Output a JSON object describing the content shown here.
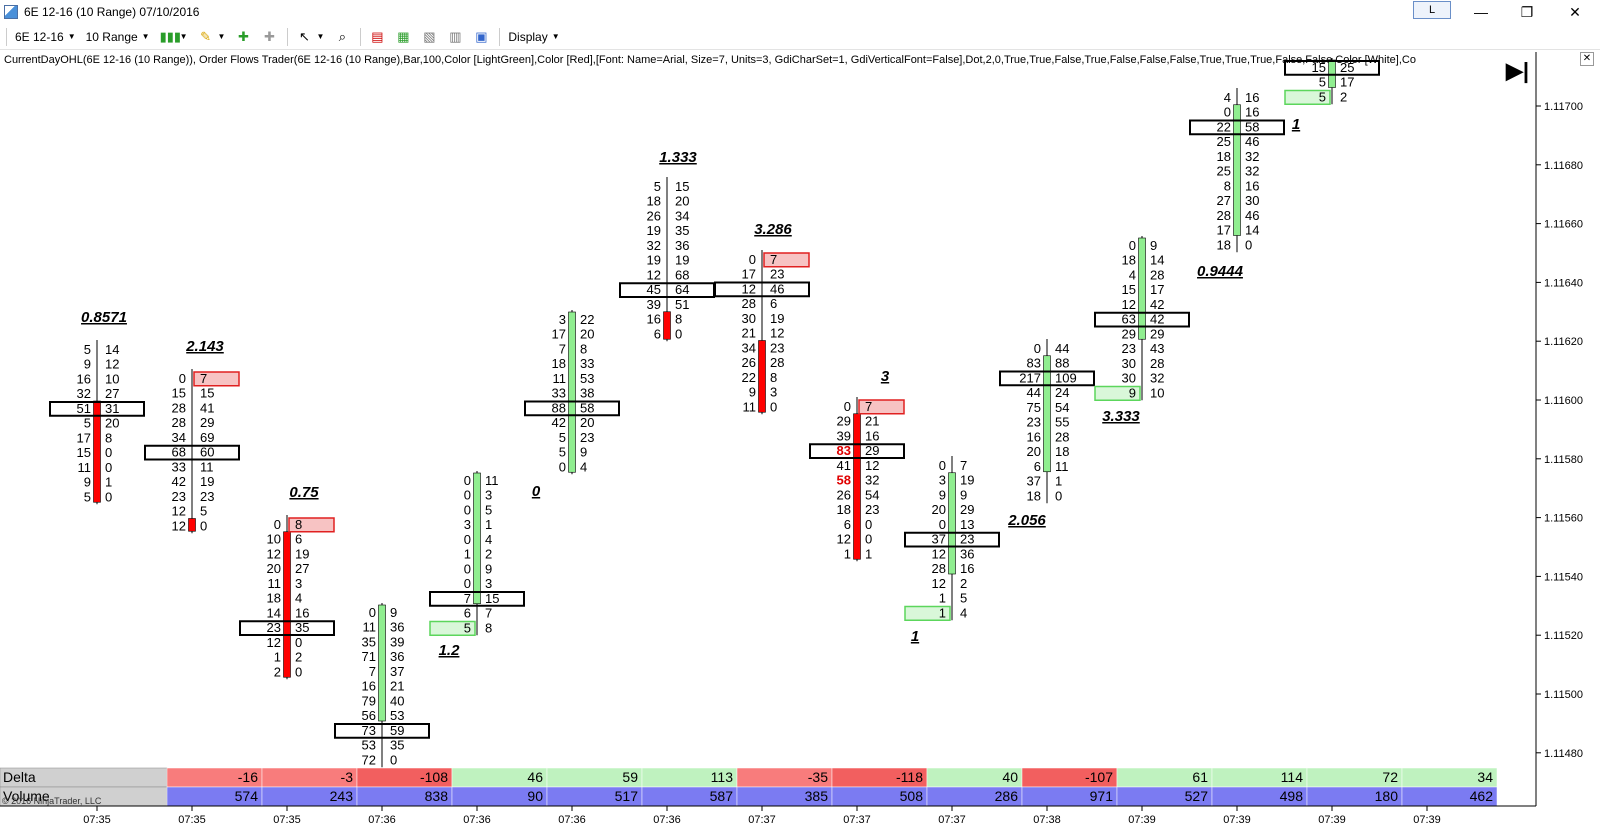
{
  "window": {
    "title": "6E 12-16 (10 Range)  07/10/2016",
    "buttons": {
      "layout": "L",
      "minimize": "—",
      "maximize": "❐",
      "close": "✕"
    }
  },
  "toolbar": {
    "instrument": "6E 12-16",
    "interval": "10 Range",
    "display_label": "Display",
    "icons": [
      "bar-style-icon",
      "draw-tool-icon",
      "pin-icon",
      "magnet-icon",
      "cursor-icon",
      "zoom-icon",
      "properties-icon",
      "strategy-icon",
      "template-icon",
      "data-box-icon",
      "chart-trader-icon"
    ]
  },
  "indicator_line": "CurrentDayOHL(6E 12-16 (10 Range)),  Order Flows Trader(6E 12-16 (10 Range),Bar,100,Color [LightGreen],Color [Red],[Font: Name=Arial, Size=7, Units=3, GdiCharSet=1, GdiVerticalFont=False],Dot,2,0,True,True,False,True,False,False,False,True,True,True,False,False,Color [White],Co",
  "copyright": "© 2016 NinjaTrader, LLC",
  "colors": {
    "up": "#90EE90",
    "down": "#FF0000",
    "delta_pos": "#BFF2BF",
    "delta_neg": "#F87C7C",
    "volume": "#7B7BF2",
    "neg_strong": "#F25F5F"
  },
  "chart_data": {
    "type": "footprint",
    "instrument": "6E 12-16",
    "y_axis": {
      "ticks": [
        "1.11700",
        "1.11680",
        "1.11660",
        "1.11640",
        "1.11620",
        "1.11600",
        "1.11580",
        "1.11560",
        "1.11540",
        "1.11520",
        "1.11500",
        "1.11480"
      ]
    },
    "x_axis": {
      "ticks": [
        "07:35",
        "07:35",
        "07:35",
        "07:36",
        "07:36",
        "07:36",
        "07:36",
        "07:37",
        "07:37",
        "07:37",
        "07:38",
        "07:39",
        "07:39",
        "07:39",
        "07:39"
      ]
    },
    "bars": [
      {
        "dir": "down",
        "ratio": "0.8571",
        "bid": [
          "5",
          "9",
          "16",
          "32",
          "51",
          "5",
          "17",
          "15",
          "11",
          "9",
          "5"
        ],
        "ask": [
          "14",
          "12",
          "10",
          "27",
          "31",
          "20",
          "8",
          "0",
          "0",
          "1",
          "0"
        ]
      },
      {
        "dir": "down",
        "ratio": "2.143",
        "bid": [
          "0",
          "15",
          "28",
          "28",
          "34",
          "68",
          "33",
          "42",
          "23",
          "12",
          "12"
        ],
        "ask": [
          "7",
          "15",
          "41",
          "29",
          "69",
          "60",
          "11",
          "19",
          "23",
          "5",
          "0"
        ]
      },
      {
        "dir": "down",
        "ratio": "0.75",
        "bid": [
          "0",
          "10",
          "12",
          "20",
          "11",
          "18",
          "14",
          "23",
          "12",
          "1",
          "2"
        ],
        "ask": [
          "8",
          "6",
          "19",
          "27",
          "3",
          "4",
          "16",
          "35",
          "0",
          "2",
          "0"
        ]
      },
      {
        "dir": "up",
        "ratio": "1.2",
        "bid": [
          "0",
          "11",
          "35",
          "71",
          "7",
          "16",
          "79",
          "56",
          "73",
          "53",
          "72"
        ],
        "ask": [
          "9",
          "36",
          "39",
          "36",
          "37",
          "21",
          "40",
          "53",
          "59",
          "35",
          "0"
        ]
      },
      {
        "dir": "up",
        "ratio": "0",
        "bid": [
          "0",
          "0",
          "0",
          "3",
          "0",
          "1",
          "0",
          "0",
          "7",
          "6",
          "5"
        ],
        "ask": [
          "11",
          "3",
          "5",
          "1",
          "4",
          "2",
          "9",
          "3",
          "15",
          "7",
          "8"
        ]
      },
      {
        "dir": "up",
        "ratio": "",
        "bid": [
          "3",
          "17",
          "7",
          "18",
          "11",
          "33",
          "88",
          "42",
          "5",
          "5",
          "0"
        ],
        "ask": [
          "22",
          "20",
          "8",
          "33",
          "53",
          "38",
          "58",
          "20",
          "23",
          "9",
          "4"
        ]
      },
      {
        "dir": "down",
        "ratio": "1.333",
        "bid": [
          "5",
          "18",
          "26",
          "19",
          "32",
          "19",
          "12",
          "45",
          "39",
          "16",
          "6"
        ],
        "ask": [
          "15",
          "20",
          "34",
          "35",
          "36",
          "19",
          "68",
          "64",
          "51",
          "8",
          "0"
        ]
      },
      {
        "dir": "down",
        "ratio": "3.286",
        "bid": [
          "0",
          "17",
          "12",
          "28",
          "30",
          "21",
          "34",
          "26",
          "22",
          "9",
          "11"
        ],
        "ask": [
          "7",
          "23",
          "46",
          "6",
          "19",
          "12",
          "23",
          "28",
          "8",
          "3",
          "0"
        ]
      },
      {
        "dir": "down",
        "ratio": "3",
        "bid": [
          "0",
          "29",
          "39",
          "83",
          "41",
          "58",
          "26",
          "18",
          "6",
          "12",
          "1"
        ],
        "ask": [
          "7",
          "21",
          "16",
          "29",
          "12",
          "32",
          "54",
          "23",
          "0",
          "0",
          "1"
        ]
      },
      {
        "dir": "up",
        "ratio": "1",
        "bid": [
          "0",
          "3",
          "9",
          "20",
          "0",
          "37",
          "12",
          "28",
          "12",
          "1",
          "1"
        ],
        "ask": [
          "7",
          "19",
          "9",
          "29",
          "13",
          "23",
          "36",
          "16",
          "2",
          "5",
          "4"
        ]
      },
      {
        "dir": "up",
        "ratio": "2.056",
        "bid": [
          "0",
          "83",
          "217",
          "44",
          "75",
          "23",
          "16",
          "20",
          "6",
          "37",
          "18"
        ],
        "ask": [
          "44",
          "88",
          "109",
          "24",
          "54",
          "55",
          "28",
          "18",
          "11",
          "1",
          "0"
        ]
      },
      {
        "dir": "up",
        "ratio": "3.333",
        "bid": [
          "0",
          "18",
          "4",
          "15",
          "12",
          "63",
          "29",
          "23",
          "30",
          "30",
          "9"
        ],
        "ask": [
          "9",
          "14",
          "28",
          "17",
          "42",
          "42",
          "29",
          "43",
          "28",
          "32",
          "10"
        ]
      },
      {
        "dir": "up",
        "ratio": "0.9444",
        "bid": [
          "4",
          "0",
          "22",
          "25",
          "18",
          "25",
          "8",
          "27",
          "28",
          "17",
          "18"
        ],
        "ask": [
          "16",
          "16",
          "58",
          "46",
          "32",
          "32",
          "16",
          "30",
          "46",
          "14",
          "0"
        ]
      },
      {
        "dir": "up",
        "ratio": "1",
        "bid": [
          "15",
          "5",
          "5"
        ],
        "ask": [
          "25",
          "17",
          "2"
        ]
      }
    ],
    "delta": [
      "-16",
      "-3",
      "-108",
      "46",
      "59",
      "113",
      "-35",
      "-118",
      "40",
      "-107",
      "61",
      "114",
      "72",
      "34"
    ],
    "volume": [
      "574",
      "243",
      "838",
      "90",
      "517",
      "587",
      "385",
      "508",
      "286",
      "971",
      "527",
      "498",
      "180",
      "462"
    ],
    "panel_labels": {
      "delta": "Delta",
      "volume": "Volume"
    }
  }
}
